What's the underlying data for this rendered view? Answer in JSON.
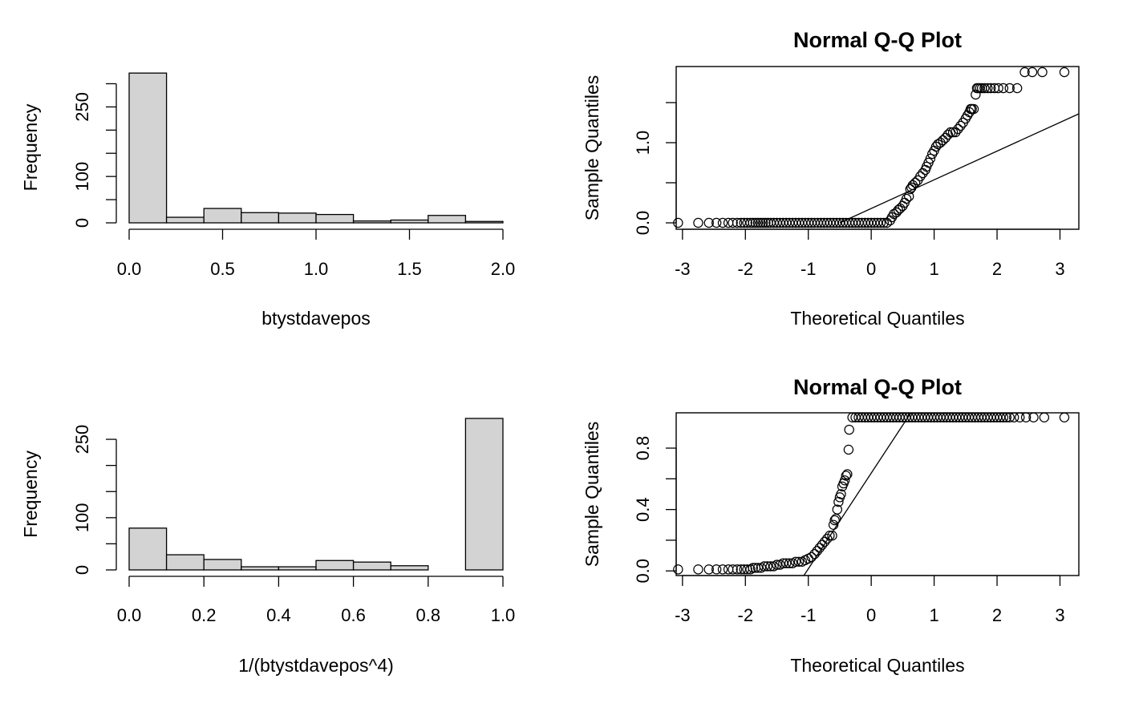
{
  "chart_data": [
    {
      "id": "hist-top",
      "type": "bar",
      "title": "",
      "xlabel": "btystdavepos",
      "ylabel": "Frequency",
      "bin_edges": [
        0.0,
        0.2,
        0.4,
        0.6,
        0.8,
        1.0,
        1.2,
        1.4,
        1.6,
        1.8,
        2.0
      ],
      "values": [
        323,
        12,
        31,
        22,
        21,
        18,
        4,
        6,
        16,
        3
      ],
      "xlim": [
        0.0,
        2.0
      ],
      "ylim": [
        0,
        325
      ],
      "xticks": [
        0.0,
        0.5,
        1.0,
        1.5,
        2.0
      ],
      "xtick_labels": [
        "0.0",
        "0.5",
        "1.0",
        "1.5",
        "2.0"
      ],
      "yticks": [
        0,
        50,
        100,
        150,
        200,
        250,
        300
      ],
      "ytick_labels": [
        "0",
        "",
        "100",
        "",
        "",
        "250",
        ""
      ]
    },
    {
      "id": "qq-top",
      "type": "scatter",
      "title": "Normal Q-Q Plot",
      "xlabel": "Theoretical Quantiles",
      "ylabel": "Sample Quantiles",
      "xlim": [
        -3.1,
        3.3
      ],
      "ylim": [
        -0.08,
        1.95
      ],
      "xticks": [
        -3,
        -2,
        -1,
        0,
        1,
        2,
        3
      ],
      "xtick_labels": [
        "-3",
        "-2",
        "-1",
        "0",
        "1",
        "2",
        "3"
      ],
      "yticks": [
        0.0,
        0.5,
        1.0,
        1.5
      ],
      "ytick_labels": [
        "0.0",
        "",
        "1.0",
        ""
      ],
      "qq_line": {
        "x1": -0.5,
        "y1": 0.0,
        "x2": 3.3,
        "y2": 1.36
      },
      "points": {
        "zero_x": [
          -3.07,
          -2.75,
          -2.58,
          -2.46,
          -2.36,
          -2.27,
          -2.2,
          -2.13,
          -2.07,
          -2.02,
          -1.97,
          -1.92,
          -1.88,
          -1.84,
          -1.8,
          -1.76,
          -1.72,
          -1.68,
          -1.64,
          -1.6,
          -1.55,
          -1.5,
          -1.45,
          -1.4,
          -1.35,
          -1.3,
          -1.25,
          -1.2,
          -1.15,
          -1.1,
          -1.05,
          -1.0,
          -0.95,
          -0.9,
          -0.85,
          -0.8,
          -0.75,
          -0.7,
          -0.65,
          -0.6,
          -0.55,
          -0.5,
          -0.45,
          -0.4,
          -0.35,
          -0.3,
          -0.25,
          -0.2,
          -0.15,
          -0.1,
          -0.05,
          0.0,
          0.05,
          0.1,
          0.15,
          0.2,
          0.25
        ],
        "x": [
          0.3,
          0.33,
          0.36,
          0.4,
          0.43,
          0.46,
          0.5,
          0.53,
          0.56,
          0.6,
          0.62,
          0.64,
          0.66,
          0.7,
          0.74,
          0.78,
          0.82,
          0.86,
          0.88,
          0.91,
          0.94,
          0.97,
          1.0,
          1.03,
          1.06,
          1.1,
          1.14,
          1.18,
          1.22,
          1.26,
          1.3,
          1.34,
          1.38,
          1.42,
          1.46,
          1.5,
          1.53,
          1.56,
          1.58,
          1.6,
          1.63,
          1.66,
          1.68,
          1.7,
          1.73,
          1.76,
          1.8,
          1.85,
          1.9,
          1.96,
          2.02,
          2.1,
          2.2,
          2.32,
          2.44,
          2.56,
          2.72,
          3.07
        ],
        "y": [
          0.03,
          0.07,
          0.11,
          0.13,
          0.16,
          0.18,
          0.21,
          0.25,
          0.3,
          0.33,
          0.42,
          0.44,
          0.47,
          0.5,
          0.53,
          0.58,
          0.62,
          0.66,
          0.7,
          0.75,
          0.8,
          0.86,
          0.9,
          0.95,
          0.98,
          1.0,
          1.03,
          1.06,
          1.1,
          1.13,
          1.13,
          1.13,
          1.17,
          1.21,
          1.25,
          1.3,
          1.34,
          1.38,
          1.42,
          1.42,
          1.42,
          1.6,
          1.68,
          1.68,
          1.68,
          1.68,
          1.68,
          1.68,
          1.68,
          1.68,
          1.68,
          1.68,
          1.68,
          1.68,
          1.88,
          1.88,
          1.88,
          1.88
        ]
      }
    },
    {
      "id": "hist-bottom",
      "type": "bar",
      "title": "",
      "xlabel": "1/(btystdavepos^4)",
      "ylabel": "Frequency",
      "bin_edges": [
        0.0,
        0.1,
        0.2,
        0.3,
        0.4,
        0.5,
        0.6,
        0.7,
        0.8,
        0.9,
        1.0
      ],
      "values": [
        80,
        29,
        20,
        6,
        6,
        18,
        15,
        8,
        0,
        290
      ],
      "xlim": [
        0.0,
        1.0
      ],
      "ylim": [
        0,
        290
      ],
      "xticks": [
        0.0,
        0.2,
        0.4,
        0.6,
        0.8,
        1.0
      ],
      "xtick_labels": [
        "0.0",
        "0.2",
        "0.4",
        "0.6",
        "0.8",
        "1.0"
      ],
      "yticks": [
        0,
        50,
        100,
        150,
        200,
        250
      ],
      "ytick_labels": [
        "0",
        "",
        "100",
        "",
        "",
        "250"
      ]
    },
    {
      "id": "qq-bottom",
      "type": "scatter",
      "title": "Normal Q-Q Plot",
      "xlabel": "Theoretical Quantiles",
      "ylabel": "Sample Quantiles",
      "xlim": [
        -3.1,
        3.3
      ],
      "ylim": [
        -0.03,
        1.03
      ],
      "xticks": [
        -3,
        -2,
        -1,
        0,
        1,
        2,
        3
      ],
      "xtick_labels": [
        "-3",
        "-2",
        "-1",
        "0",
        "1",
        "2",
        "3"
      ],
      "yticks": [
        0.0,
        0.2,
        0.4,
        0.6,
        0.8
      ],
      "ytick_labels": [
        "0.0",
        "",
        "0.4",
        "",
        "0.8"
      ],
      "qq_line": {
        "x1": -1.07,
        "y1": -0.03,
        "x2": 0.63,
        "y2": 1.03
      },
      "points": {
        "x": [
          -3.07,
          -2.75,
          -2.58,
          -2.46,
          -2.36,
          -2.27,
          -2.2,
          -2.13,
          -2.07,
          -2.02,
          -1.97,
          -1.92,
          -1.88,
          -1.84,
          -1.8,
          -1.75,
          -1.7,
          -1.65,
          -1.6,
          -1.55,
          -1.5,
          -1.45,
          -1.4,
          -1.35,
          -1.3,
          -1.25,
          -1.2,
          -1.15,
          -1.1,
          -1.05,
          -1.0,
          -0.95,
          -0.9,
          -0.86,
          -0.82,
          -0.78,
          -0.74,
          -0.7,
          -0.66,
          -0.62,
          -0.6,
          -0.58,
          -0.56,
          -0.54,
          -0.52,
          -0.5,
          -0.48,
          -0.46,
          -0.44,
          -0.42,
          -0.4,
          -0.38,
          -0.36,
          -0.35
        ],
        "y": [
          0.01,
          0.01,
          0.01,
          0.01,
          0.01,
          0.01,
          0.01,
          0.01,
          0.01,
          0.01,
          0.01,
          0.01,
          0.02,
          0.02,
          0.02,
          0.02,
          0.03,
          0.03,
          0.03,
          0.03,
          0.04,
          0.04,
          0.05,
          0.05,
          0.05,
          0.05,
          0.06,
          0.06,
          0.06,
          0.07,
          0.08,
          0.09,
          0.11,
          0.13,
          0.15,
          0.17,
          0.19,
          0.21,
          0.23,
          0.23,
          0.3,
          0.33,
          0.34,
          0.4,
          0.45,
          0.48,
          0.5,
          0.55,
          0.57,
          0.59,
          0.62,
          0.63,
          0.79,
          0.92
        ],
        "one_x": [
          -0.3,
          -0.25,
          -0.2,
          -0.15,
          -0.1,
          -0.05,
          0.0,
          0.05,
          0.1,
          0.15,
          0.2,
          0.25,
          0.3,
          0.35,
          0.4,
          0.45,
          0.5,
          0.55,
          0.6,
          0.65,
          0.7,
          0.75,
          0.8,
          0.85,
          0.9,
          0.95,
          1.0,
          1.05,
          1.1,
          1.15,
          1.2,
          1.25,
          1.3,
          1.35,
          1.4,
          1.45,
          1.5,
          1.55,
          1.6,
          1.65,
          1.7,
          1.75,
          1.8,
          1.85,
          1.9,
          1.95,
          2.0,
          2.05,
          2.1,
          2.15,
          2.2,
          2.27,
          2.36,
          2.46,
          2.58,
          2.75,
          3.07
        ]
      }
    }
  ]
}
